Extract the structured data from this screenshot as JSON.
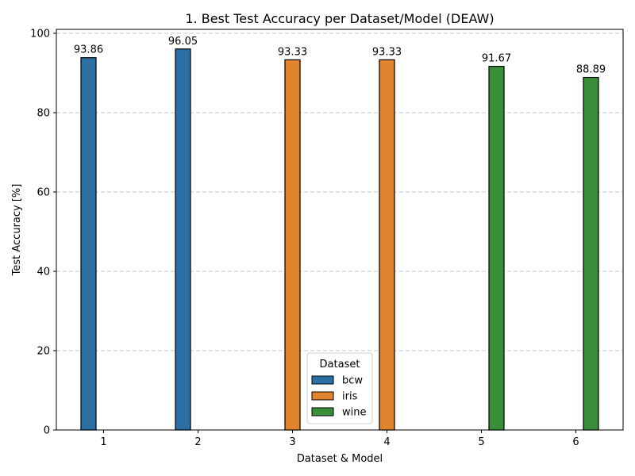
{
  "chart_data": {
    "type": "bar",
    "title": "1. Best Test Accuracy per Dataset/Model (DEAW)",
    "xlabel": "Dataset & Model",
    "ylabel": "Test Accuracy [%]",
    "categories": [
      "1",
      "2",
      "3",
      "4",
      "5",
      "6"
    ],
    "ylim": [
      0,
      101
    ],
    "yticks": [
      0,
      20,
      40,
      60,
      80,
      100
    ],
    "grid": true,
    "grid_axis": "y",
    "legend": {
      "title": "Dataset",
      "position": "lower-center",
      "entries": [
        "bcw",
        "iris",
        "wine"
      ]
    },
    "series": [
      {
        "name": "bcw",
        "color": "#2c6fa5",
        "values": [
          93.86,
          96.05,
          null,
          null,
          null,
          null
        ]
      },
      {
        "name": "iris",
        "color": "#e2832e",
        "values": [
          null,
          null,
          93.33,
          93.33,
          null,
          null
        ]
      },
      {
        "name": "wine",
        "color": "#3a8e3a",
        "values": [
          null,
          null,
          null,
          null,
          91.67,
          88.89
        ]
      }
    ],
    "data_labels": [
      "93.86",
      "96.05",
      "93.33",
      "93.33",
      "91.67",
      "88.89"
    ]
  }
}
